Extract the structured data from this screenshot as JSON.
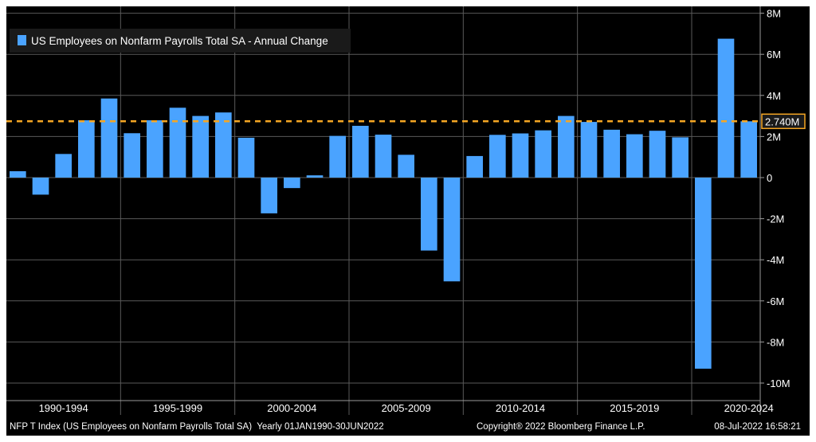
{
  "chart_data": {
    "type": "bar",
    "legend": {
      "label": "US Employees on Nonfarm Payrolls Total SA - Annual Change",
      "placement": "top-left"
    },
    "colors": {
      "bar": "#4aa3ff",
      "reference_line": "#f5a623",
      "background": "#000000",
      "grid": "#5a5a5a",
      "axis_text": "#ffffff"
    },
    "years": [
      1990,
      1991,
      1992,
      1993,
      1994,
      1995,
      1996,
      1997,
      1998,
      1999,
      2000,
      2001,
      2002,
      2003,
      2004,
      2005,
      2006,
      2007,
      2008,
      2009,
      2010,
      2011,
      2012,
      2013,
      2014,
      2015,
      2016,
      2017,
      2018,
      2019,
      2020,
      2021,
      2022
    ],
    "values": [
      0.31,
      -0.83,
      1.15,
      2.79,
      3.85,
      2.16,
      2.79,
      3.4,
      3.0,
      3.17,
      1.94,
      -1.74,
      -0.51,
      0.11,
      2.03,
      2.52,
      2.09,
      1.11,
      -3.55,
      -5.05,
      1.05,
      2.08,
      2.15,
      2.3,
      3.0,
      2.71,
      2.33,
      2.11,
      2.28,
      1.96,
      -9.3,
      6.76,
      2.74
    ],
    "unit": "M",
    "ylim": [
      -11,
      8
    ],
    "y_ticks": [
      8,
      6,
      4,
      2,
      0,
      -2,
      -4,
      -6,
      -8,
      -10
    ],
    "y_tick_labels": [
      "8M",
      "6M",
      "4M",
      "2M",
      "0",
      "-2M",
      "-4M",
      "-6M",
      "-8M",
      "-10M"
    ],
    "x_groups": [
      {
        "label": "1990-1994",
        "start_year": 1990
      },
      {
        "label": "1995-1999",
        "start_year": 1995
      },
      {
        "label": "2000-2004",
        "start_year": 2000
      },
      {
        "label": "2005-2009",
        "start_year": 2005
      },
      {
        "label": "2010-2014",
        "start_year": 2010
      },
      {
        "label": "2015-2019",
        "start_year": 2015
      },
      {
        "label": "2020-2024",
        "start_year": 2020
      }
    ],
    "reference_line": {
      "value": 2.74,
      "label": "2.740M"
    },
    "grid": true
  },
  "footer": {
    "left": "NFP T Index (US Employees on Nonfarm Payrolls Total SA)  Yearly 01JAN1990-30JUN2022",
    "copyright": "Copyright® 2022 Bloomberg Finance L.P.",
    "timestamp": "08-Jul-2022 16:58:21"
  }
}
